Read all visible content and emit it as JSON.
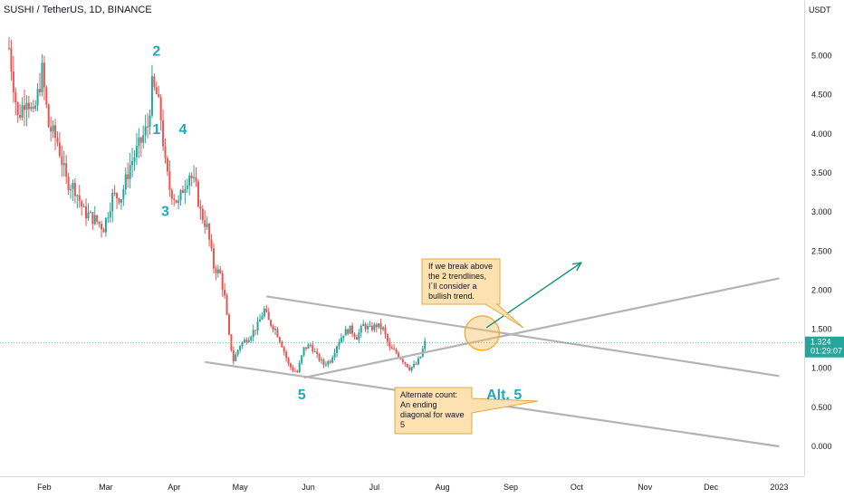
{
  "header": {
    "symbol_line": "SUSHI / TetherUS, 1D, BINANCE",
    "currency": "USDT"
  },
  "colors": {
    "up": "#26a69a",
    "down": "#ef5350",
    "trendline": "#b3b3b3",
    "wave_label": "#26a6b8",
    "arrow": "#14907a",
    "callout_fill": "#fde1b0",
    "callout_border": "#e0a94a",
    "circle": "#f5a623",
    "price_tag": "#26a69a",
    "axis_text": "#131722"
  },
  "chart_data": {
    "type": "candlestick",
    "title": "SUSHI / TetherUS, 1D, BINANCE",
    "ylabel": "USDT",
    "ylim": [
      -0.35,
      5.55
    ],
    "x_tick_labels": [
      "Feb",
      "Mar",
      "Apr",
      "May",
      "Jun",
      "Jul",
      "Aug",
      "Sep",
      "Oct",
      "Nov",
      "Dec",
      "2023"
    ],
    "x_tick_days": [
      31,
      59,
      90,
      120,
      151,
      181,
      212,
      243,
      273,
      304,
      334,
      365
    ],
    "y_ticks": [
      5.0,
      4.5,
      4.0,
      3.5,
      3.0,
      2.5,
      2.0,
      1.5,
      1.0,
      0.5,
      0.0
    ],
    "y_tick_labels": [
      "5.000",
      "4.500",
      "4.000",
      "3.500",
      "3.000",
      "2.500",
      "2.000",
      "1.500",
      "1.000",
      "0.500",
      "0.000"
    ],
    "current_price": {
      "value": 1.324,
      "label": "1.324",
      "countdown": "01:29:07"
    },
    "close_path": [
      [
        15,
        5.1
      ],
      [
        19,
        4.2
      ],
      [
        23,
        4.5
      ],
      [
        26,
        4.2
      ],
      [
        30,
        4.8
      ],
      [
        33,
        4.1
      ],
      [
        37,
        3.9
      ],
      [
        41,
        3.4
      ],
      [
        45,
        3.3
      ],
      [
        49,
        3.0
      ],
      [
        54,
        2.9
      ],
      [
        58,
        2.8
      ],
      [
        62,
        3.2
      ],
      [
        66,
        3.2
      ],
      [
        70,
        3.6
      ],
      [
        75,
        3.9
      ],
      [
        78,
        4.1
      ],
      [
        80,
        4.6
      ],
      [
        82,
        4.5
      ],
      [
        84,
        4.2
      ],
      [
        86,
        3.6
      ],
      [
        88,
        3.3
      ],
      [
        90,
        3.2
      ],
      [
        92,
        3.1
      ],
      [
        94,
        3.3
      ],
      [
        97,
        3.5
      ],
      [
        100,
        3.3
      ],
      [
        102,
        3.0
      ],
      [
        105,
        2.8
      ],
      [
        108,
        2.3
      ],
      [
        111,
        2.2
      ],
      [
        113,
        1.9
      ],
      [
        115,
        1.4
      ],
      [
        117,
        1.1
      ],
      [
        120,
        1.3
      ],
      [
        124,
        1.4
      ],
      [
        128,
        1.55
      ],
      [
        131,
        1.75
      ],
      [
        133,
        1.6
      ],
      [
        136,
        1.5
      ],
      [
        139,
        1.3
      ],
      [
        142,
        1.05
      ],
      [
        144,
        0.98
      ],
      [
        146,
        0.95
      ],
      [
        149,
        1.25
      ],
      [
        152,
        1.3
      ],
      [
        155,
        1.15
      ],
      [
        158,
        1.05
      ],
      [
        161,
        1.1
      ],
      [
        164,
        1.3
      ],
      [
        167,
        1.45
      ],
      [
        170,
        1.5
      ],
      [
        173,
        1.4
      ],
      [
        176,
        1.55
      ],
      [
        179,
        1.5
      ],
      [
        182,
        1.55
      ],
      [
        185,
        1.5
      ],
      [
        188,
        1.25
      ],
      [
        191,
        1.2
      ],
      [
        194,
        1.1
      ],
      [
        197,
        1.0
      ],
      [
        200,
        1.05
      ],
      [
        202,
        1.15
      ],
      [
        204,
        1.324
      ]
    ],
    "trendlines": [
      {
        "name": "upper-descending",
        "x1": 132,
        "y1": 1.92,
        "x2": 365,
        "y2": 0.9
      },
      {
        "name": "lower-descending",
        "x1": 104,
        "y1": 1.08,
        "x2": 365,
        "y2": 0.0
      },
      {
        "name": "rising",
        "x1": 149,
        "y1": 0.88,
        "x2": 365,
        "y2": 2.15
      }
    ],
    "arrow": {
      "x1": 232,
      "y1": 1.52,
      "x2": 275,
      "y2": 2.35
    },
    "circle": {
      "x": 230,
      "y": 1.45
    },
    "wave_labels": [
      {
        "text": "2",
        "x": 82,
        "y": 5.0
      },
      {
        "text": "1",
        "x": 82,
        "y": 4.0
      },
      {
        "text": "4",
        "x": 94,
        "y": 4.0
      },
      {
        "text": "3",
        "x": 86,
        "y": 2.95
      },
      {
        "text": "5",
        "x": 148,
        "y": 0.6
      },
      {
        "text": "Alt. 5",
        "x": 240,
        "y": 0.6
      }
    ]
  },
  "annotations": {
    "note1": {
      "lines": [
        "If we break above",
        "the 2 trendlines,",
        "I´ll consider a",
        "bullish trend."
      ]
    },
    "note2": {
      "lines": [
        "Alternate count:",
        "An ending",
        "diagonal for wave",
        "5"
      ]
    }
  }
}
